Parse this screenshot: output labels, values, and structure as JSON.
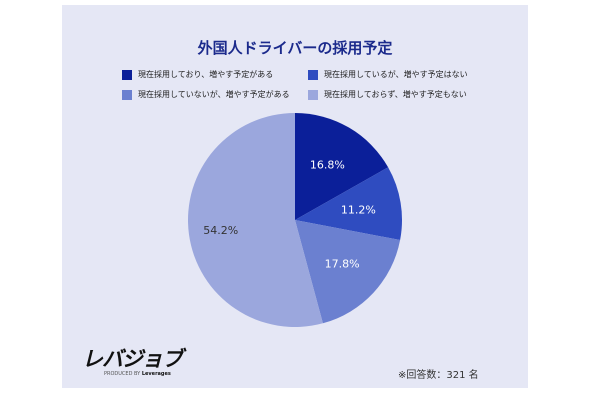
{
  "chart_data": {
    "type": "pie",
    "title": "外国人ドライバーの採用予定",
    "start": "top",
    "direction": "clockwise",
    "legend_placement": "top",
    "slices": [
      {
        "label": "現在採用しており、増やす予定がある",
        "value": 16.8,
        "display": "16.8%",
        "color": "#0b1f99"
      },
      {
        "label": "現在採用しているが、増やす予定はない",
        "value": 11.2,
        "display": "11.2%",
        "color": "#2f4cc0"
      },
      {
        "label": "現在採用していないが、増やす予定がある",
        "value": 17.8,
        "display": "17.8%",
        "color": "#6b80d0"
      },
      {
        "label": "現在採用しておらず、増やす予定もない",
        "value": 54.2,
        "display": "54.2%",
        "color": "#9ba7dd"
      }
    ]
  },
  "logo": {
    "text": "レバジョブ",
    "sub_prefix": "PRODUCED BY",
    "sub_brand": "Leverages"
  },
  "note": "※回答数：321 名"
}
